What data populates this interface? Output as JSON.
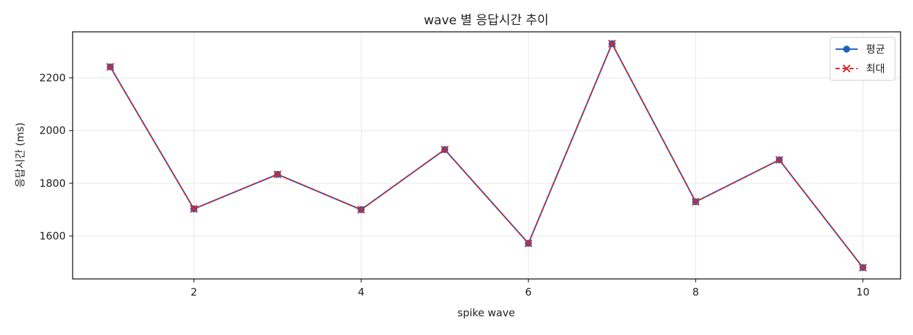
{
  "chart_data": {
    "type": "line",
    "title": "wave 별 응답시간 추이",
    "xlabel": "spike wave",
    "ylabel": "응답시간 (ms)",
    "x": [
      1,
      2,
      3,
      4,
      5,
      6,
      7,
      8,
      9,
      10
    ],
    "xlim": [
      0.55,
      10.45
    ],
    "ylim": [
      1437,
      2375
    ],
    "xticks": [
      2,
      4,
      6,
      8,
      10
    ],
    "yticks": [
      1600,
      1800,
      2000,
      2200
    ],
    "grid": true,
    "legend_position": "top-right",
    "series": [
      {
        "name": "평균",
        "values": [
          2242,
          1703,
          1834,
          1700,
          1928,
          1572,
          2330,
          1730,
          1889,
          1480
        ],
        "color": "#1f5fbf",
        "marker": "circle",
        "line_style": "solid"
      },
      {
        "name": "최대",
        "values": [
          2242,
          1703,
          1834,
          1700,
          1928,
          1572,
          2330,
          1730,
          1889,
          1480
        ],
        "color": "#d62728",
        "marker": "x",
        "line_style": "dashed"
      }
    ]
  }
}
